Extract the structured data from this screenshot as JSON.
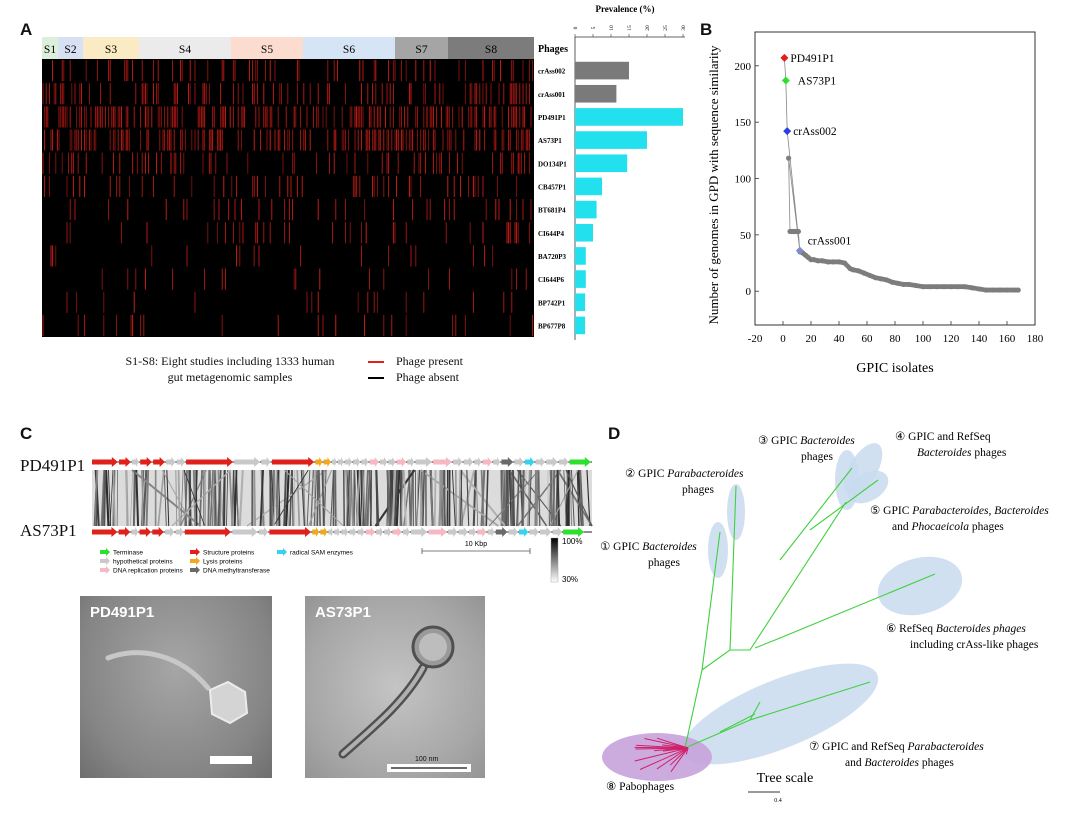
{
  "panels": {
    "A": "A",
    "B": "B",
    "C": "C",
    "D": "D"
  },
  "panelA": {
    "studies": [
      {
        "label": "S1",
        "color": "#dcefdc"
      },
      {
        "label": "S2",
        "color": "#d8e0f4"
      },
      {
        "label": "S3",
        "color": "#fbebc4"
      },
      {
        "label": "S4",
        "color": "#ebebeb"
      },
      {
        "label": "S5",
        "color": "#fbdccf"
      },
      {
        "label": "S6",
        "color": "#d6e5f5"
      },
      {
        "label": "S7",
        "color": "#a5a5a5"
      },
      {
        "label": "S8",
        "color": "#7c7c7c"
      }
    ],
    "phages_header": "Phages",
    "prevalence_title": "Prevalence (%)",
    "prevalence_ticks": [
      "0",
      "5",
      "10",
      "15",
      "20",
      "25",
      "30"
    ],
    "legend_note_line1": "S1-S8: Eight studies including 1333 human",
    "legend_note_line2": "gut metagenomic samples",
    "legend_present": "Phage present",
    "legend_absent": "Phage absent",
    "present_color": "#e0201a",
    "bar_color_crass": "#7a7a7a",
    "bar_color_gpic": "#22e0ee"
  },
  "chart_data": [
    {
      "type": "bar",
      "title": "Prevalence (%)",
      "xlabel": "Prevalence (%)",
      "ylabel": "Phages",
      "xlim": [
        0,
        30
      ],
      "categories": [
        "crAss002",
        "crAss001",
        "PD491P1",
        "AS73P1",
        "DO134P1",
        "CB457P1",
        "BT681P4",
        "CI644P4",
        "BA720P3",
        "CI644P6",
        "BP742P1",
        "BP677P8"
      ],
      "values": [
        15,
        11.5,
        30,
        20,
        14.5,
        7.5,
        6,
        5,
        3,
        3,
        2.8,
        2.8
      ]
    },
    {
      "type": "scatter",
      "xlabel": "GPIC isolates",
      "ylabel": "Number of genomes in GPD with sequence similarity",
      "xlim": [
        -20,
        180
      ],
      "ylim": [
        -30,
        230
      ],
      "xticks": [
        "-20",
        "0",
        "20",
        "40",
        "60",
        "80",
        "100",
        "120",
        "140",
        "160",
        "180"
      ],
      "yticks": [
        "0",
        "50",
        "100",
        "150",
        "200"
      ],
      "labeled_points": [
        {
          "label": "PD491P1",
          "x": 1,
          "y": 207,
          "color": "#e0201a"
        },
        {
          "label": "AS73P1",
          "x": 2,
          "y": 187,
          "color": "#2ee02e"
        },
        {
          "label": "crAss002",
          "x": 3,
          "y": 142,
          "color": "#2b3fe0"
        },
        {
          "label": "crAss001",
          "x": 12,
          "y": 36,
          "color": "#7f8ad0"
        }
      ],
      "series": [
        {
          "name": "GPIC isolates",
          "x": [
            4,
            5,
            6,
            7,
            8,
            9,
            10,
            11,
            12,
            14,
            16,
            18,
            20,
            22,
            25,
            28,
            32,
            36,
            40,
            44,
            48,
            50,
            54,
            58,
            62,
            66,
            70,
            74,
            78,
            82,
            86,
            90,
            95,
            100,
            105,
            110,
            115,
            120,
            125,
            130,
            135,
            140,
            145,
            150,
            155,
            160,
            165,
            168
          ],
          "y": [
            118,
            53,
            53,
            53,
            53,
            53,
            53,
            53,
            35,
            34,
            32,
            30,
            28,
            28,
            27,
            27,
            26,
            26,
            26,
            25,
            20,
            19,
            18,
            16,
            14,
            12,
            11,
            10,
            8,
            7,
            6,
            6,
            5,
            4,
            4,
            4,
            4,
            4,
            4,
            4,
            3,
            2,
            1,
            1,
            1,
            1,
            1,
            1
          ]
        }
      ]
    }
  ],
  "panelC": {
    "top_name": "PD491P1",
    "bottom_name": "AS73P1",
    "legend": [
      {
        "label": "Terminase",
        "color": "#2ee02e"
      },
      {
        "label": "hypothetical proteins",
        "color": "#c9c9c9"
      },
      {
        "label": "DNA replication proteins",
        "color": "#f6b9c4"
      },
      {
        "label": "Structure proteins",
        "color": "#e0201a"
      },
      {
        "label": "Lysis proteins",
        "color": "#f2a81c"
      },
      {
        "label": "DNA methyltransferase",
        "color": "#6a6a6a"
      },
      {
        "label": "radical SAM enzymes",
        "color": "#36d4ec"
      }
    ],
    "scale_label": "10 Kbp",
    "sim_high": "100%",
    "sim_low": "30%",
    "micro_left_label": "PD491P1",
    "micro_right_label": "AS73P1",
    "micro_right_scale": "100 nm"
  },
  "panelD": {
    "groups": [
      {
        "num": "①",
        "line1": "GPIC ",
        "it1": "Bacteroides",
        "line2": "phages"
      },
      {
        "num": "②",
        "line1": "GPIC ",
        "it1": "Parabacteroides",
        "line2": "phages"
      },
      {
        "num": "③",
        "line1": "GPIC ",
        "it1": "Bacteroides",
        "line2": "phages"
      },
      {
        "num": "④",
        "line1": "GPIC and RefSeq",
        "it1": "Bacteroides",
        "line2": " phages"
      },
      {
        "num": "⑤",
        "line1": "GPIC ",
        "it1": "Parabacteroides, Bacteroides",
        "line2": "and ",
        "it2": "Phocaeicola",
        "line3": " phages"
      },
      {
        "num": "⑥",
        "line1": "RefSeq ",
        "it1": "Bacteroides phages",
        "line2": "including crAss-like phages"
      },
      {
        "num": "⑦",
        "line1": "GPIC and RefSeq ",
        "it1": "Parabacteroides",
        "line2": "and ",
        "it2": "Bacteroides",
        "line3": " phages"
      },
      {
        "num": "⑧",
        "line1": "Pabophages"
      }
    ],
    "tree_scale_label": "Tree scale",
    "tree_scale_value": "0.4"
  }
}
